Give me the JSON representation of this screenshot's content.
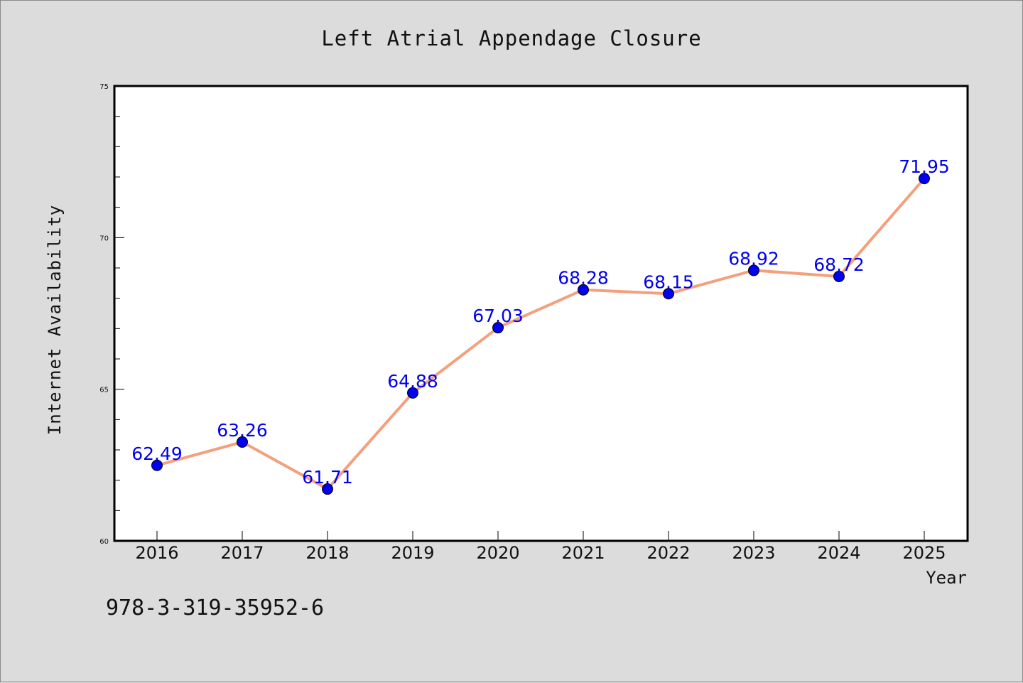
{
  "colors": {
    "background": "#dcdcdc",
    "plot_background": "#ffffff",
    "line": "#f4a07c",
    "marker": "#0000ee",
    "data_label": "#0000ee"
  },
  "footer": {
    "code": "978-3-319-35952-6"
  },
  "chart_data": {
    "type": "line",
    "title": "Left Atrial Appendage Closure",
    "xlabel": "Year",
    "ylabel": "Internet Availability",
    "categories": [
      "2016",
      "2017",
      "2018",
      "2019",
      "2020",
      "2021",
      "2022",
      "2023",
      "2024",
      "2025"
    ],
    "series": [
      {
        "values": [
          62.49,
          63.26,
          61.71,
          64.88,
          67.03,
          68.28,
          68.15,
          68.92,
          68.72,
          71.95
        ]
      }
    ],
    "data_labels": [
      "62.49",
      "63.26",
      "61.71",
      "64.88",
      "67.03",
      "68.28",
      "68.15",
      "68.92",
      "68.72",
      "71.95"
    ],
    "ylim": [
      60,
      75
    ],
    "yticks": [
      "60",
      "65",
      "70",
      "75"
    ],
    "grid": false,
    "legend": "none"
  }
}
